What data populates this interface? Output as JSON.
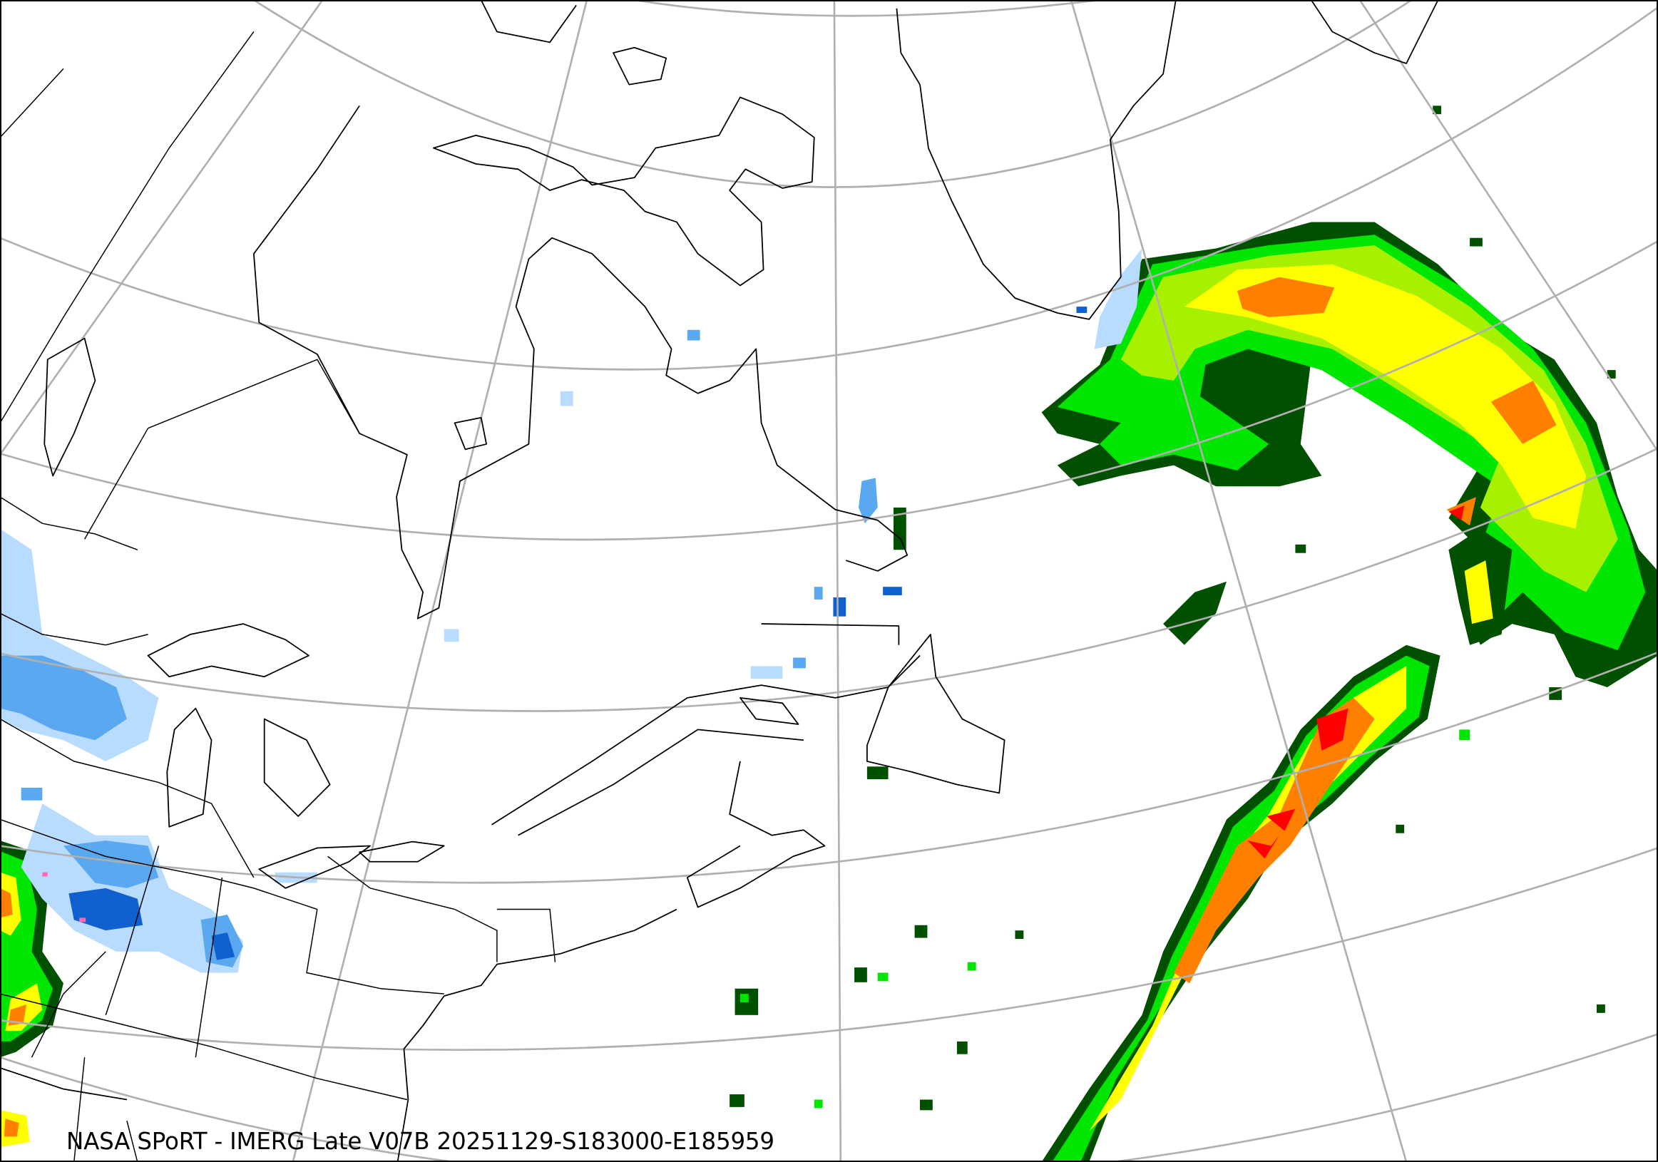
{
  "caption": "NASA SPoRT - IMERG Late V07B 20251129-S183000-E185959",
  "map": {
    "product": "IMERG Late V07B",
    "projection_style": "conic, graticule grey",
    "colors": {
      "graticule": "#b0b0b0",
      "coastline": "#000000",
      "rain_very_light": "#005000",
      "rain_light": "#008c00",
      "rain_moderate": "#00e600",
      "rain_lime": "#a6f000",
      "rain_yellow": "#ffff00",
      "rain_gold": "#ffc800",
      "rain_orange": "#ff8000",
      "rain_red": "#ff0000",
      "snow_light": "#b8dcff",
      "snow_moderate": "#5aa8f0",
      "snow_heavy": "#1060d0",
      "mixed": "#ff69b4"
    }
  }
}
